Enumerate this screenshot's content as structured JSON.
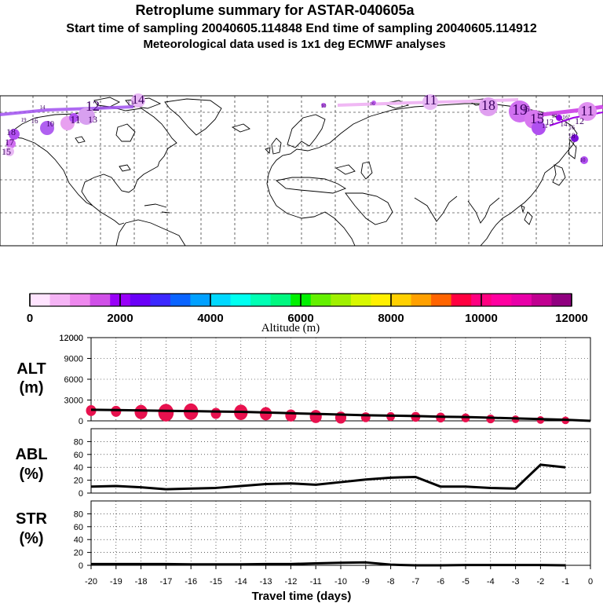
{
  "title": {
    "line1": "Retroplume summary for ASTAR-040605a",
    "line2": "Start time of sampling 20040605.114848     End time of sampling 20040605.114912",
    "line3": "Meteorological data used is 1x1 deg ECMWF analyses"
  },
  "colorbar": {
    "label": "Altitude (m)",
    "ticks": [
      "0",
      "2000",
      "4000",
      "6000",
      "8000",
      "10000",
      "12000"
    ],
    "colors": [
      "#ffe4ff",
      "#f5b4f5",
      "#ee88ee",
      "#d050e8",
      "#9800f8",
      "#6a00f8",
      "#3c28ff",
      "#0a64ff",
      "#00a0ff",
      "#00d8ff",
      "#00fff0",
      "#00ffb4",
      "#00f880",
      "#00f000",
      "#64f000",
      "#a0f000",
      "#d8f800",
      "#fff000",
      "#ffd000",
      "#ffa000",
      "#ff6400",
      "#ff0040",
      "#ff0080",
      "#ff00a0",
      "#e800a8",
      "#c00090",
      "#900080"
    ]
  },
  "map": {
    "labels": [
      "14",
      "12",
      "13",
      "11",
      "10",
      "16",
      "19",
      "18",
      "17",
      "15",
      "14",
      "13",
      "11",
      "10",
      "16",
      "18",
      "19",
      "15",
      "13",
      "14",
      "11",
      "12",
      "16",
      "18",
      "10",
      "13",
      "11",
      "15",
      "19",
      "16"
    ]
  },
  "chart_data": [
    {
      "type": "line",
      "name": "ALT",
      "ylabel": "ALT",
      "yunit": "(m)",
      "ylim": [
        0,
        12000
      ],
      "yticks": [
        "0",
        "3000",
        "6000",
        "9000",
        "12000"
      ],
      "x": [
        -20,
        -19,
        -18,
        -17,
        -16,
        -15,
        -14,
        -13,
        -12,
        -11,
        -10,
        -9,
        -8,
        -7,
        -6,
        -5,
        -4,
        -3,
        -2,
        -1,
        0
      ],
      "values": [
        1600,
        1550,
        1500,
        1450,
        1400,
        1350,
        1300,
        1200,
        1100,
        1000,
        900,
        800,
        750,
        700,
        600,
        550,
        450,
        350,
        250,
        150,
        0
      ],
      "scatter": {
        "x": [
          -20,
          -19,
          -18,
          -17,
          -16,
          -15,
          -14,
          -13,
          -12,
          -11,
          -10,
          -9,
          -8,
          -7,
          -6,
          -5,
          -4,
          -3,
          -2,
          -1
        ],
        "values": [
          1700,
          1600,
          1500,
          1400,
          1550,
          1300,
          1450,
          1250,
          1000,
          850,
          700,
          750,
          850,
          800,
          700,
          650,
          500,
          450,
          350,
          300
        ],
        "sizes": [
          1.0,
          1.0,
          1.3,
          1.6,
          1.5,
          1.0,
          1.4,
          1.2,
          1.1,
          1.2,
          1.1,
          0.9,
          0.8,
          0.9,
          0.9,
          0.8,
          0.8,
          0.7,
          0.7,
          0.7
        ],
        "color": "#e8114e"
      }
    },
    {
      "type": "line",
      "name": "ABL",
      "ylabel": "ABL",
      "yunit": "(%)",
      "ylim": [
        0,
        100
      ],
      "yticks": [
        "0",
        "20",
        "40",
        "60",
        "80"
      ],
      "x": [
        -20,
        -19,
        -18,
        -17,
        -16,
        -15,
        -14,
        -13,
        -12,
        -11,
        -10,
        -9,
        -8,
        -7,
        -6,
        -5,
        -4,
        -3,
        -2,
        -1
      ],
      "values": [
        10,
        11,
        9,
        6,
        7,
        8,
        11,
        14,
        15,
        13,
        17,
        21,
        24,
        25,
        10,
        10,
        8,
        7,
        44,
        40
      ]
    },
    {
      "type": "line",
      "name": "STR",
      "ylabel": "STR",
      "yunit": "(%)",
      "ylim": [
        0,
        100
      ],
      "yticks": [
        "0",
        "20",
        "40",
        "60",
        "80"
      ],
      "x": [
        -20,
        -19,
        -18,
        -17,
        -16,
        -15,
        -14,
        -13,
        -12,
        -11,
        -10,
        -9,
        -8,
        -7,
        -6,
        -5,
        -4,
        -3,
        -2,
        -1
      ],
      "values": [
        2,
        2,
        2,
        2,
        1.5,
        1.5,
        1.5,
        2,
        2,
        3,
        4,
        4.5,
        1,
        0,
        0,
        0.5,
        0.5,
        0.5,
        0.5,
        0
      ],
      "xlabel": "Travel time (days)",
      "xticks": [
        "-20",
        "-19",
        "-18",
        "-17",
        "-16",
        "-15",
        "-14",
        "-13",
        "-12",
        "-11",
        "-10",
        "-9",
        "-8",
        "-7",
        "-6",
        "-5",
        "-4",
        "-3",
        "-2",
        "-1",
        "0"
      ]
    }
  ]
}
